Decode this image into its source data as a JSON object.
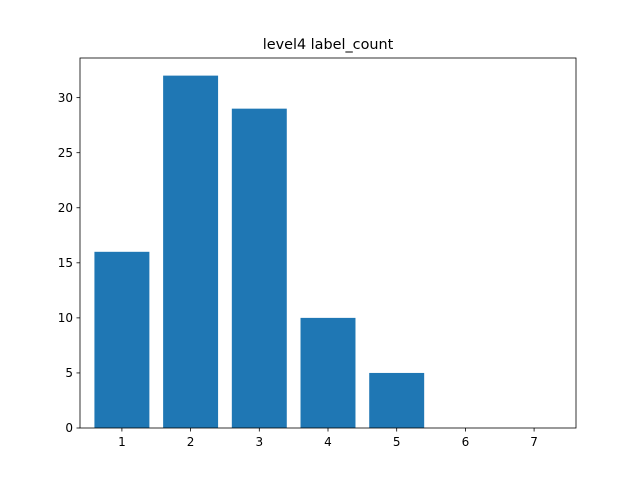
{
  "chart_data": {
    "type": "bar",
    "title": "level4 label_count",
    "xlabel": "",
    "ylabel": "",
    "categories": [
      1,
      2,
      3,
      4,
      5,
      6,
      7
    ],
    "values": [
      16,
      32,
      29,
      10,
      5,
      0,
      0
    ],
    "xticks": [
      "1",
      "2",
      "3",
      "4",
      "5",
      "6",
      "7"
    ],
    "yticks": [
      0,
      5,
      10,
      15,
      20,
      25,
      30
    ],
    "xlim": [
      0.39,
      7.61
    ],
    "ylim": [
      0,
      33.6
    ],
    "bar_color": "#1f77b4",
    "grid": false
  }
}
